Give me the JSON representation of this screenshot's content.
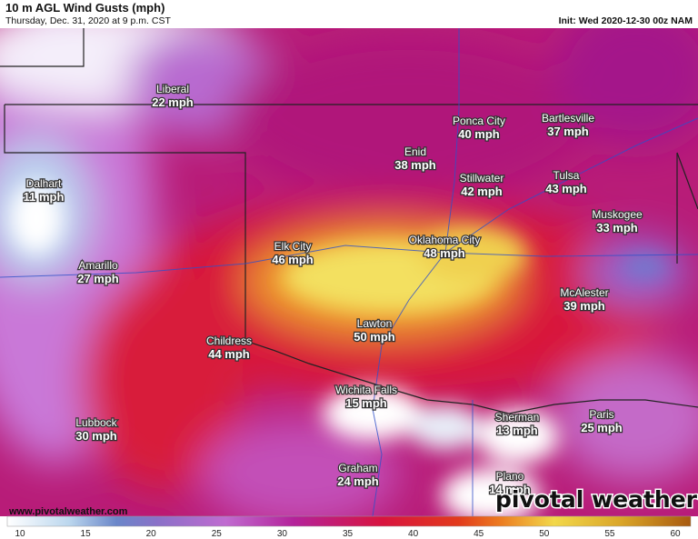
{
  "header": {
    "title": "10 m AGL Wind Gusts (mph)",
    "subtitle": "Thursday, Dec. 31, 2020 at 9 p.m. CST",
    "init": "Init: Wed 2020-12-30 00z NAM"
  },
  "cities": [
    {
      "name": "Liberal",
      "value": "22 mph"
    },
    {
      "name": "Ponca City",
      "value": "40 mph"
    },
    {
      "name": "Bartlesville",
      "value": "37 mph"
    },
    {
      "name": "Enid",
      "value": "38 mph"
    },
    {
      "name": "Dalhart",
      "value": "11 mph"
    },
    {
      "name": "Stillwater",
      "value": "42 mph"
    },
    {
      "name": "Tulsa",
      "value": "43 mph"
    },
    {
      "name": "Muskogee",
      "value": "33 mph"
    },
    {
      "name": "Elk City",
      "value": "46 mph"
    },
    {
      "name": "Oklahoma City",
      "value": "48 mph"
    },
    {
      "name": "Amarillo",
      "value": "27 mph"
    },
    {
      "name": "McAlester",
      "value": "39 mph"
    },
    {
      "name": "Lawton",
      "value": "50 mph"
    },
    {
      "name": "Childress",
      "value": "44 mph"
    },
    {
      "name": "Wichita Falls",
      "value": "15 mph"
    },
    {
      "name": "Sherman",
      "value": "13 mph"
    },
    {
      "name": "Paris",
      "value": "25 mph"
    },
    {
      "name": "Lubbock",
      "value": "30 mph"
    },
    {
      "name": "Graham",
      "value": "24 mph"
    },
    {
      "name": "Plano",
      "value": "14 mph"
    }
  ],
  "footer": {
    "url": "www.pivotalweather.com",
    "logo": "pivotal weather"
  },
  "colorbar": {
    "ticks": [
      10,
      15,
      20,
      25,
      30,
      35,
      40,
      45,
      50,
      55,
      60
    ]
  }
}
